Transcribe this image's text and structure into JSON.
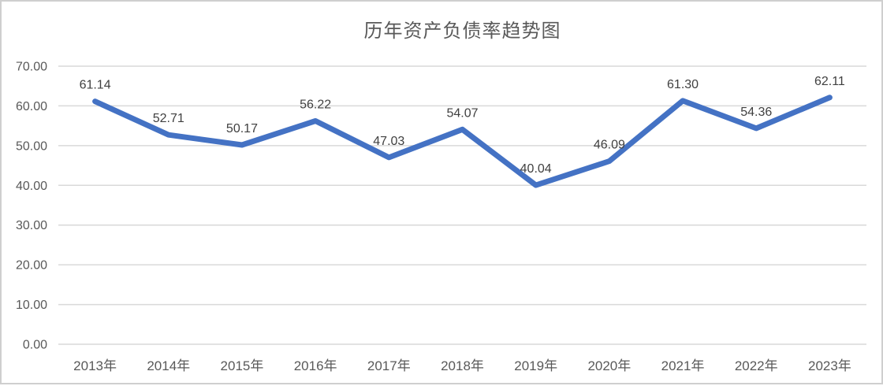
{
  "page": {
    "background": "#ffffff",
    "border_color": "#cfcfcf"
  },
  "chart_data": {
    "type": "line",
    "title": "历年资产负债率趋势图",
    "categories": [
      "2013年",
      "2014年",
      "2015年",
      "2016年",
      "2017年",
      "2018年",
      "2019年",
      "2020年",
      "2021年",
      "2022年",
      "2023年"
    ],
    "values": [
      61.14,
      52.71,
      50.17,
      56.22,
      47.03,
      54.07,
      40.04,
      46.09,
      61.3,
      54.36,
      62.11
    ],
    "point_labels": [
      "61.14",
      "52.71",
      "50.17",
      "56.22",
      "47.03",
      "54.07",
      "40.04",
      "46.09",
      "61.30",
      "54.36",
      "62.11"
    ],
    "xlabel": "",
    "ylabel": "",
    "ylim": [
      0,
      70
    ],
    "yticks": [
      0,
      10,
      20,
      30,
      40,
      50,
      60,
      70
    ],
    "ytick_labels": [
      "0.00",
      "10.00",
      "20.00",
      "30.00",
      "40.00",
      "50.00",
      "60.00",
      "70.00"
    ],
    "grid": true,
    "legend": "none",
    "line_color": "#4472C4",
    "gridline_color": "#D9D9D9",
    "axis_label_color": "#595959",
    "data_label_color": "#404040",
    "title_color": "#595959"
  }
}
